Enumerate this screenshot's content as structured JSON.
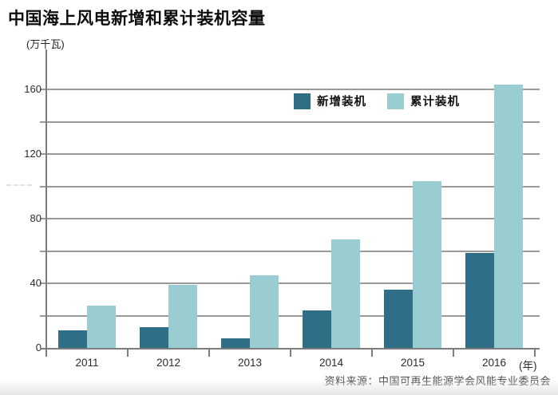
{
  "page": {
    "title": "中国海上风电新增和累计装机容量",
    "source": "资料来源：中国可再生能源学会风能专业委员会"
  },
  "chart_data": {
    "type": "bar",
    "title": "中国海上风电新增和累计装机容量",
    "unit_label": "(万千瓦)",
    "x_axis_unit": "(年)",
    "categories": [
      "2011",
      "2012",
      "2013",
      "2014",
      "2015",
      "2016"
    ],
    "series": [
      {
        "name": "新增装机",
        "color": "#2e6f87",
        "values": [
          11,
          13,
          6,
          23,
          36,
          59
        ]
      },
      {
        "name": "累计装机",
        "color": "#9acdd1",
        "values": [
          26,
          39,
          45,
          67,
          103,
          163
        ]
      }
    ],
    "y_ticks": [
      0,
      40,
      80,
      120,
      160
    ],
    "gridline_step": 20,
    "gridline_max": 160,
    "ylim": [
      0,
      166
    ],
    "grid": true,
    "legend_position": "top-right-inside",
    "colors": {
      "gridline": "#9a9a9a",
      "axis": "#7d7d7d",
      "title_text": "#0d0d0d",
      "source_text": "#4a4a4a"
    }
  }
}
